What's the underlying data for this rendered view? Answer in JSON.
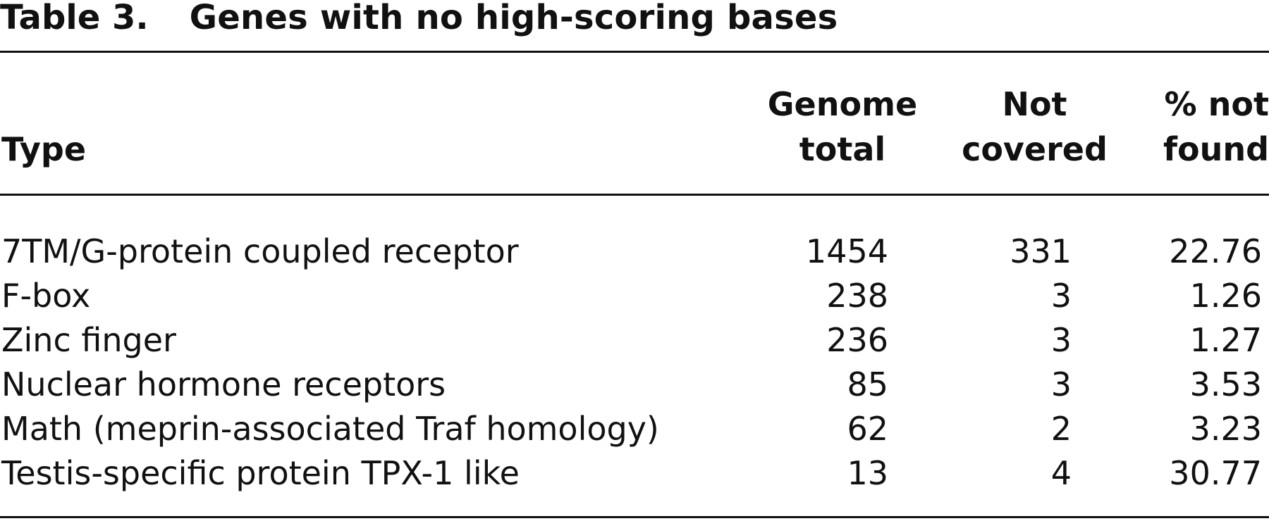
{
  "table": {
    "label": "Table 3.",
    "title": "Genes with no high-scoring bases",
    "headers": {
      "type": "Type",
      "genome_total": [
        "Genome",
        "total"
      ],
      "not_covered": [
        "Not",
        "covered"
      ],
      "pct_not_found": [
        "% not",
        "found"
      ]
    },
    "rows": [
      {
        "type": "7TM/G-protein coupled receptor",
        "genome_total": "1454",
        "not_covered": "331",
        "pct_not_found": "22.76"
      },
      {
        "type": "F-box",
        "genome_total": "238",
        "not_covered": "3",
        "pct_not_found": "1.26"
      },
      {
        "type": "Zinc finger",
        "genome_total": "236",
        "not_covered": "3",
        "pct_not_found": "1.27"
      },
      {
        "type": "Nuclear hormone receptors",
        "genome_total": "85",
        "not_covered": "3",
        "pct_not_found": "3.53"
      },
      {
        "type": "Math (meprin-associated Traf homology)",
        "genome_total": "62",
        "not_covered": "2",
        "pct_not_found": "3.23"
      },
      {
        "type": "Testis-specific protein TPX-1 like",
        "genome_total": "13",
        "not_covered": "4",
        "pct_not_found": "30.77"
      }
    ]
  }
}
